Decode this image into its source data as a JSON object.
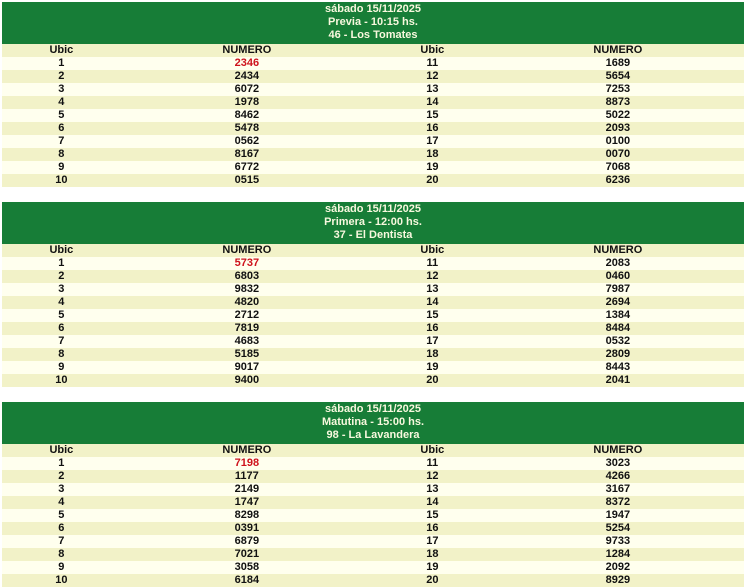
{
  "colors": {
    "green_header_bg": "#177D37",
    "green_header_text": "#F8F8DE",
    "row_odd_bg": "#FFFFEE",
    "row_even_bg": "#F2F2C8",
    "number_text": "#111111",
    "highlight_red": "#CE121C",
    "page_bg": "#FFFFFF"
  },
  "columns": {
    "ubic": "Ubic",
    "numero": "NUMERO"
  },
  "draws": [
    {
      "date": "sábado 15/11/2025",
      "name": "Previa - 10:15 hs.",
      "winner": "46 - Los Tomates",
      "highlight_position": 1,
      "numbers": [
        "2346",
        "2434",
        "6072",
        "1978",
        "8462",
        "5478",
        "0562",
        "8167",
        "6772",
        "0515",
        "1689",
        "5654",
        "7253",
        "8873",
        "5022",
        "2093",
        "0100",
        "0070",
        "7068",
        "6236"
      ]
    },
    {
      "date": "sábado 15/11/2025",
      "name": "Primera - 12:00 hs.",
      "winner": "37 - El Dentista",
      "highlight_position": 1,
      "numbers": [
        "5737",
        "6803",
        "9832",
        "4820",
        "2712",
        "7819",
        "4683",
        "5185",
        "9017",
        "9400",
        "2083",
        "0460",
        "7987",
        "2694",
        "1384",
        "8484",
        "0532",
        "2809",
        "8443",
        "2041"
      ]
    },
    {
      "date": "sábado 15/11/2025",
      "name": "Matutina - 15:00 hs.",
      "winner": "98 - La Lavandera",
      "highlight_position": 1,
      "numbers": [
        "7198",
        "1177",
        "2149",
        "1747",
        "8298",
        "0391",
        "6879",
        "7021",
        "3058",
        "6184",
        "3023",
        "4266",
        "3167",
        "8372",
        "1947",
        "5254",
        "9733",
        "1284",
        "2092",
        "8929"
      ]
    }
  ]
}
